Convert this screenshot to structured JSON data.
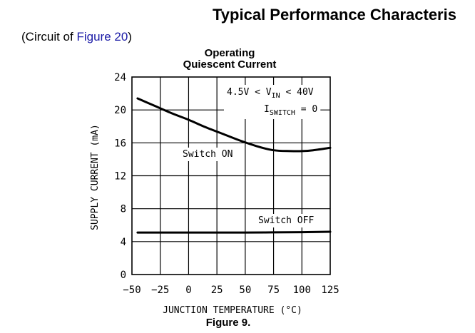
{
  "header": {
    "section_title": "Typical Performance Characteris",
    "circuit_prefix": "(Circuit of ",
    "circuit_link": "Figure 20",
    "circuit_suffix": ")"
  },
  "caption": "Figure 9.",
  "colors": {
    "link": "#1a1aa6",
    "curve": "#000000",
    "grid": "#000000"
  },
  "chart_data": {
    "type": "line",
    "title_line1": "Operating",
    "title_line2": "Quiescent Current",
    "xlabel": "JUNCTION TEMPERATURE (°C)",
    "ylabel": "SUPPLY CURRENT (mA)",
    "xlim": [
      -50,
      125
    ],
    "ylim": [
      0,
      24
    ],
    "xticks": [
      -50,
      -25,
      0,
      25,
      50,
      75,
      100,
      125
    ],
    "yticks": [
      0,
      4,
      8,
      12,
      16,
      20,
      24
    ],
    "grid": true,
    "conditions": {
      "line1_prefix": "4.5V < V",
      "line1_sub": "IN",
      "line1_suffix": " < 40V",
      "line2_main": "I",
      "line2_sub": "SWITCH",
      "line2_suffix": " = 0"
    },
    "series": [
      {
        "name": "Switch ON",
        "x": [
          -45,
          -30,
          -15,
          0,
          15,
          30,
          45,
          60,
          75,
          90,
          100,
          110,
          125
        ],
        "y": [
          21.4,
          20.5,
          19.6,
          18.8,
          17.9,
          17.1,
          16.3,
          15.6,
          15.1,
          15.0,
          15.0,
          15.1,
          15.4
        ]
      },
      {
        "name": "Switch OFF",
        "x": [
          -45,
          0,
          50,
          100,
          125
        ],
        "y": [
          5.1,
          5.1,
          5.1,
          5.15,
          5.2
        ]
      }
    ]
  }
}
